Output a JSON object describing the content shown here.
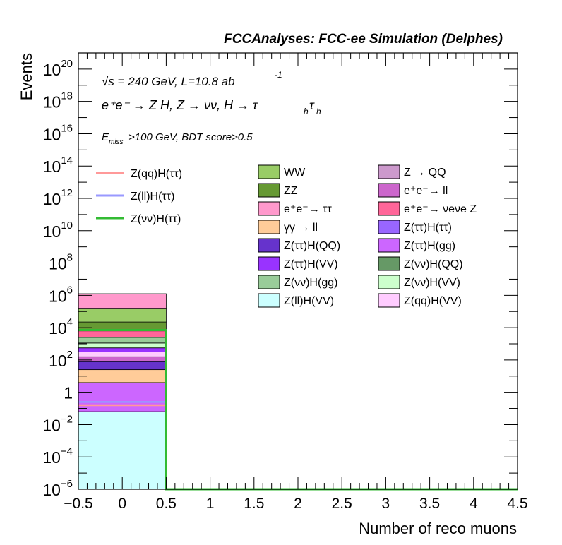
{
  "chart_data": {
    "type": "bar",
    "title": "FCCAnalyses: FCC-ee Simulation (Delphes)",
    "xlabel": "Number of reco muons",
    "ylabel": "Events",
    "xlim": [
      -0.5,
      4.5
    ],
    "ylim": [
      1e-06,
      1e+21
    ],
    "yscale": "log",
    "x_ticks": [
      "−0.5",
      "0",
      "0.5",
      "1",
      "1.5",
      "2",
      "2.5",
      "3",
      "3.5",
      "4",
      "4.5"
    ],
    "y_ticks": [
      {
        "base": "10",
        "exp": "−6"
      },
      {
        "base": "10",
        "exp": "−4"
      },
      {
        "base": "10",
        "exp": "−2"
      },
      {
        "base": "1",
        "exp": ""
      },
      {
        "base": "10",
        "exp": "2"
      },
      {
        "base": "10",
        "exp": "4"
      },
      {
        "base": "10",
        "exp": "6"
      },
      {
        "base": "10",
        "exp": "8"
      },
      {
        "base": "10",
        "exp": "10"
      },
      {
        "base": "10",
        "exp": "12"
      },
      {
        "base": "10",
        "exp": "14"
      },
      {
        "base": "10",
        "exp": "16"
      },
      {
        "base": "10",
        "exp": "18"
      },
      {
        "base": "10",
        "exp": "20"
      }
    ],
    "annotations": {
      "energy": "√s = 240 GeV, L=10.8 ab",
      "energy_exp": "-1",
      "process": "e⁺e⁻ → Z H, Z → νν, H → τ",
      "process_sub1": "h",
      "process_tau2": "τ",
      "process_sub2": "h",
      "selection_E": "E",
      "selection_sub": "miss",
      "selection_rest": ">100 GeV, BDT score>0.5"
    },
    "bin": [
      -0.5,
      0.5
    ],
    "stack_boundaries_log10": [
      -1.2,
      0.6,
      1.4,
      1.9,
      2.2,
      2.5,
      2.75,
      3.05,
      3.4,
      3.8,
      4.35,
      5.2,
      6.1
    ],
    "stack_bands": [
      {
        "name": "Z(ll)H(VV)",
        "color": "#ccffff"
      },
      {
        "name": "Z(ττ)H(gg)",
        "color": "#cc66ff"
      },
      {
        "name": "γγ → ll",
        "color": "#ffcc99"
      },
      {
        "name": "Z(ττ)H(QQ)",
        "color": "#6633cc"
      },
      {
        "name": "e⁺e⁻→ ll",
        "color": "#cc66cc"
      },
      {
        "name": "Z(qq)H(VV)",
        "color": "#ffccff"
      },
      {
        "name": "Z(ττ)H(VV)",
        "color": "#9933ff"
      },
      {
        "name": "Z(νν)H(VV)",
        "color": "#ccffcc"
      },
      {
        "name": "Z(νν)H(gg)",
        "color": "#99cc99"
      },
      {
        "name": "e⁺e⁻→ νeνe Z",
        "color": "#ff6699"
      },
      {
        "name": "ZZ",
        "color": "#669933"
      },
      {
        "name": "WW",
        "color": "#99cc66"
      },
      {
        "name": "e⁺e⁻→ ττ",
        "color": "#ff99cc"
      }
    ],
    "signal_lines": [
      {
        "name": "Z(qq)H(ττ)",
        "color": "#ff9999",
        "log10_value": -0.8
      },
      {
        "name": "Z(ll)H(ττ)",
        "color": "#9999ff",
        "log10_value": -0.6
      },
      {
        "name": "Z(νν)H(ττ)",
        "color": "#33bb33",
        "log10_value": 3.85
      }
    ],
    "legend_signals": [
      {
        "label": "Z(qq)H(ττ)",
        "color": "#ff9999"
      },
      {
        "label": "Z(ll)H(ττ)",
        "color": "#9999ff"
      },
      {
        "label": "Z(νν)H(ττ)",
        "color": "#33bb33"
      }
    ],
    "legend_backgrounds_col1": [
      {
        "label": "WW",
        "color": "#99cc66"
      },
      {
        "label": "ZZ",
        "color": "#669933"
      },
      {
        "label": "e⁺e⁻→ ττ",
        "color": "#ff99cc"
      },
      {
        "label": "γγ → ll",
        "color": "#ffcc99"
      },
      {
        "label": "Z(ττ)H(QQ)",
        "color": "#6633cc"
      },
      {
        "label": "Z(ττ)H(VV)",
        "color": "#9933ff"
      },
      {
        "label": "Z(νν)H(gg)",
        "color": "#99cc99"
      },
      {
        "label": "Z(ll)H(VV)",
        "color": "#ccffff"
      }
    ],
    "legend_backgrounds_col2": [
      {
        "label": "Z → QQ",
        "color": "#cc99cc"
      },
      {
        "label": "e⁺e⁻→ ll",
        "color": "#cc66cc"
      },
      {
        "label": "e⁺e⁻→ νeνe Z",
        "color": "#ff6699"
      },
      {
        "label": "Z(ττ)H(ττ)",
        "color": "#9966ff"
      },
      {
        "label": "Z(ττ)H(gg)",
        "color": "#cc66ff"
      },
      {
        "label": "Z(νν)H(QQ)",
        "color": "#669966"
      },
      {
        "label": "Z(νν)H(VV)",
        "color": "#ccffcc"
      },
      {
        "label": "Z(qq)H(VV)",
        "color": "#ffccff"
      }
    ]
  }
}
